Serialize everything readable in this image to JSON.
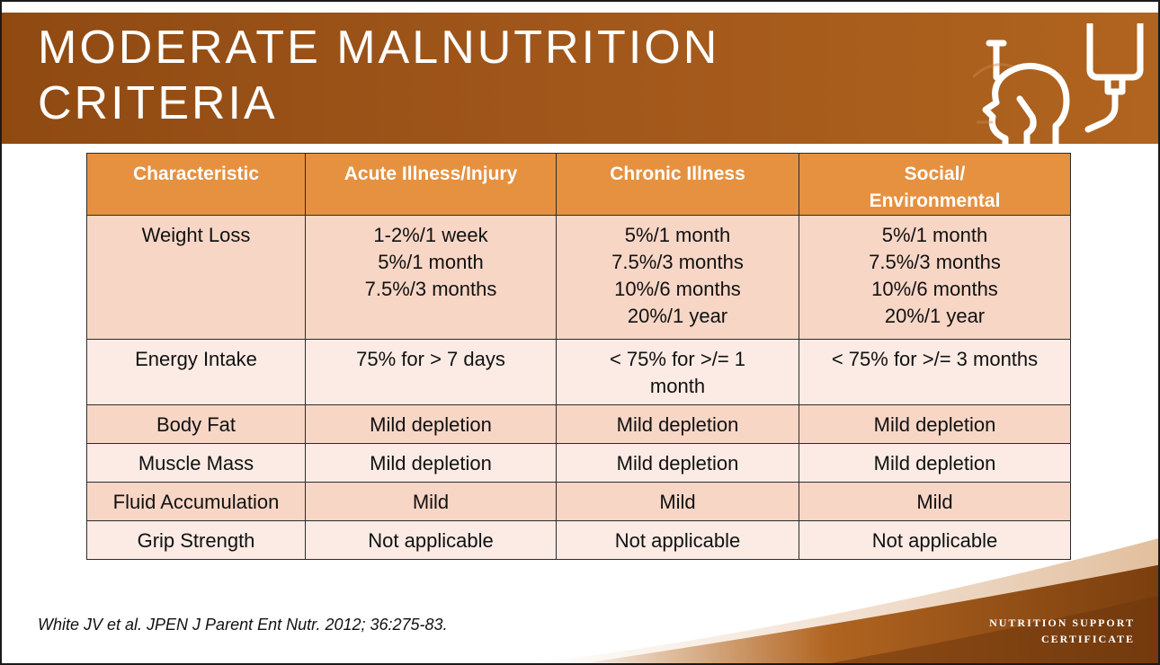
{
  "slide": {
    "title_line1": "MODERATE MALNUTRITION",
    "title_line2": "CRITERIA"
  },
  "table": {
    "headers": [
      [
        "Characteristic"
      ],
      [
        "Acute Illness/Injury"
      ],
      [
        "Chronic Illness"
      ],
      [
        "Social/",
        "Environmental"
      ]
    ],
    "rows": [
      [
        [
          "Weight Loss"
        ],
        [
          "1-2%/1 week",
          "5%/1 month",
          "7.5%/3 months"
        ],
        [
          "5%/1 month",
          "7.5%/3 months",
          "10%/6 months",
          "20%/1 year"
        ],
        [
          "5%/1 month",
          "7.5%/3 months",
          "10%/6 months",
          "20%/1 year"
        ]
      ],
      [
        [
          "Energy Intake"
        ],
        [
          "75% for > 7 days"
        ],
        [
          "< 75% for >/= 1",
          "month"
        ],
        [
          "< 75% for >/= 3 months"
        ]
      ],
      [
        [
          "Body Fat"
        ],
        [
          "Mild depletion"
        ],
        [
          "Mild depletion"
        ],
        [
          "Mild depletion"
        ]
      ],
      [
        [
          "Muscle Mass"
        ],
        [
          "Mild depletion"
        ],
        [
          "Mild depletion"
        ],
        [
          "Mild depletion"
        ]
      ],
      [
        [
          "Fluid Accumulation"
        ],
        [
          "Mild"
        ],
        [
          "Mild"
        ],
        [
          "Mild"
        ]
      ],
      [
        [
          "Grip Strength"
        ],
        [
          "Not applicable"
        ],
        [
          "Not applicable"
        ],
        [
          "Not applicable"
        ]
      ]
    ]
  },
  "citation": "White JV et al. JPEN J Parent Ent Nutr. 2012; 36:275-83.",
  "branding": {
    "line1": "NUTRITION SUPPORT",
    "line2": "CERTIFICATE"
  },
  "colors": {
    "title_band": "#a0561a",
    "header_fill": "#e59140",
    "row_dark": "#f7d6c6",
    "row_light": "#fbebe4",
    "corner_accent": "#8f4a12"
  },
  "icons": [
    "iv-bag-head-logo"
  ]
}
